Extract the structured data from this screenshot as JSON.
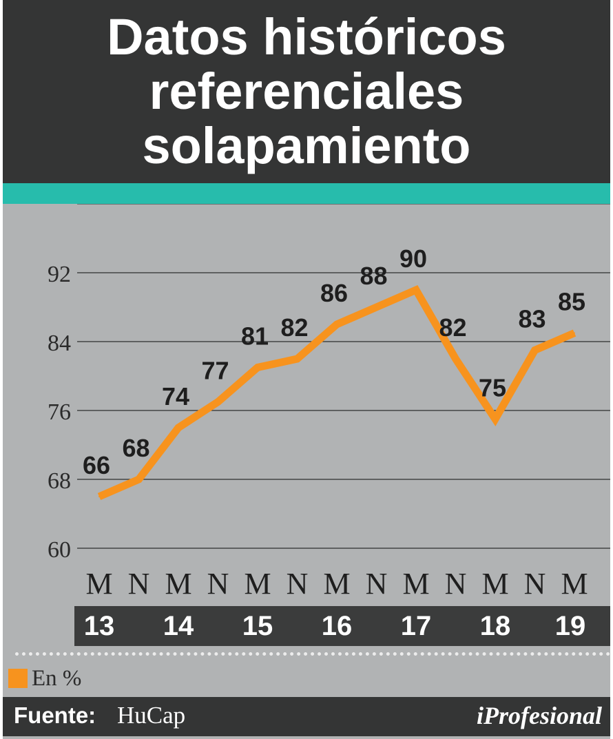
{
  "title_lines": [
    "Datos históricos",
    "referenciales",
    "solapamiento"
  ],
  "legend": {
    "label": "En %",
    "color": "#f7931e"
  },
  "source": {
    "label": "Fuente:",
    "value": "HuCap"
  },
  "brand": "iProfesional",
  "chart_data": {
    "type": "line",
    "title": "Datos históricos referenciales solapamiento",
    "categories": [
      "M",
      "N",
      "M",
      "N",
      "M",
      "N",
      "M",
      "N",
      "M",
      "N",
      "M",
      "N",
      "M"
    ],
    "years": [
      "13",
      "14",
      "15",
      "16",
      "17",
      "18",
      "19"
    ],
    "series": [
      {
        "values": [
          66,
          68,
          74,
          77,
          81,
          82,
          86,
          88,
          90,
          82,
          75,
          83,
          85
        ],
        "color": "#f7931e"
      }
    ],
    "yticks": [
      60,
      68,
      76,
      84,
      92
    ],
    "ylim": [
      60,
      100
    ],
    "grid": true
  }
}
